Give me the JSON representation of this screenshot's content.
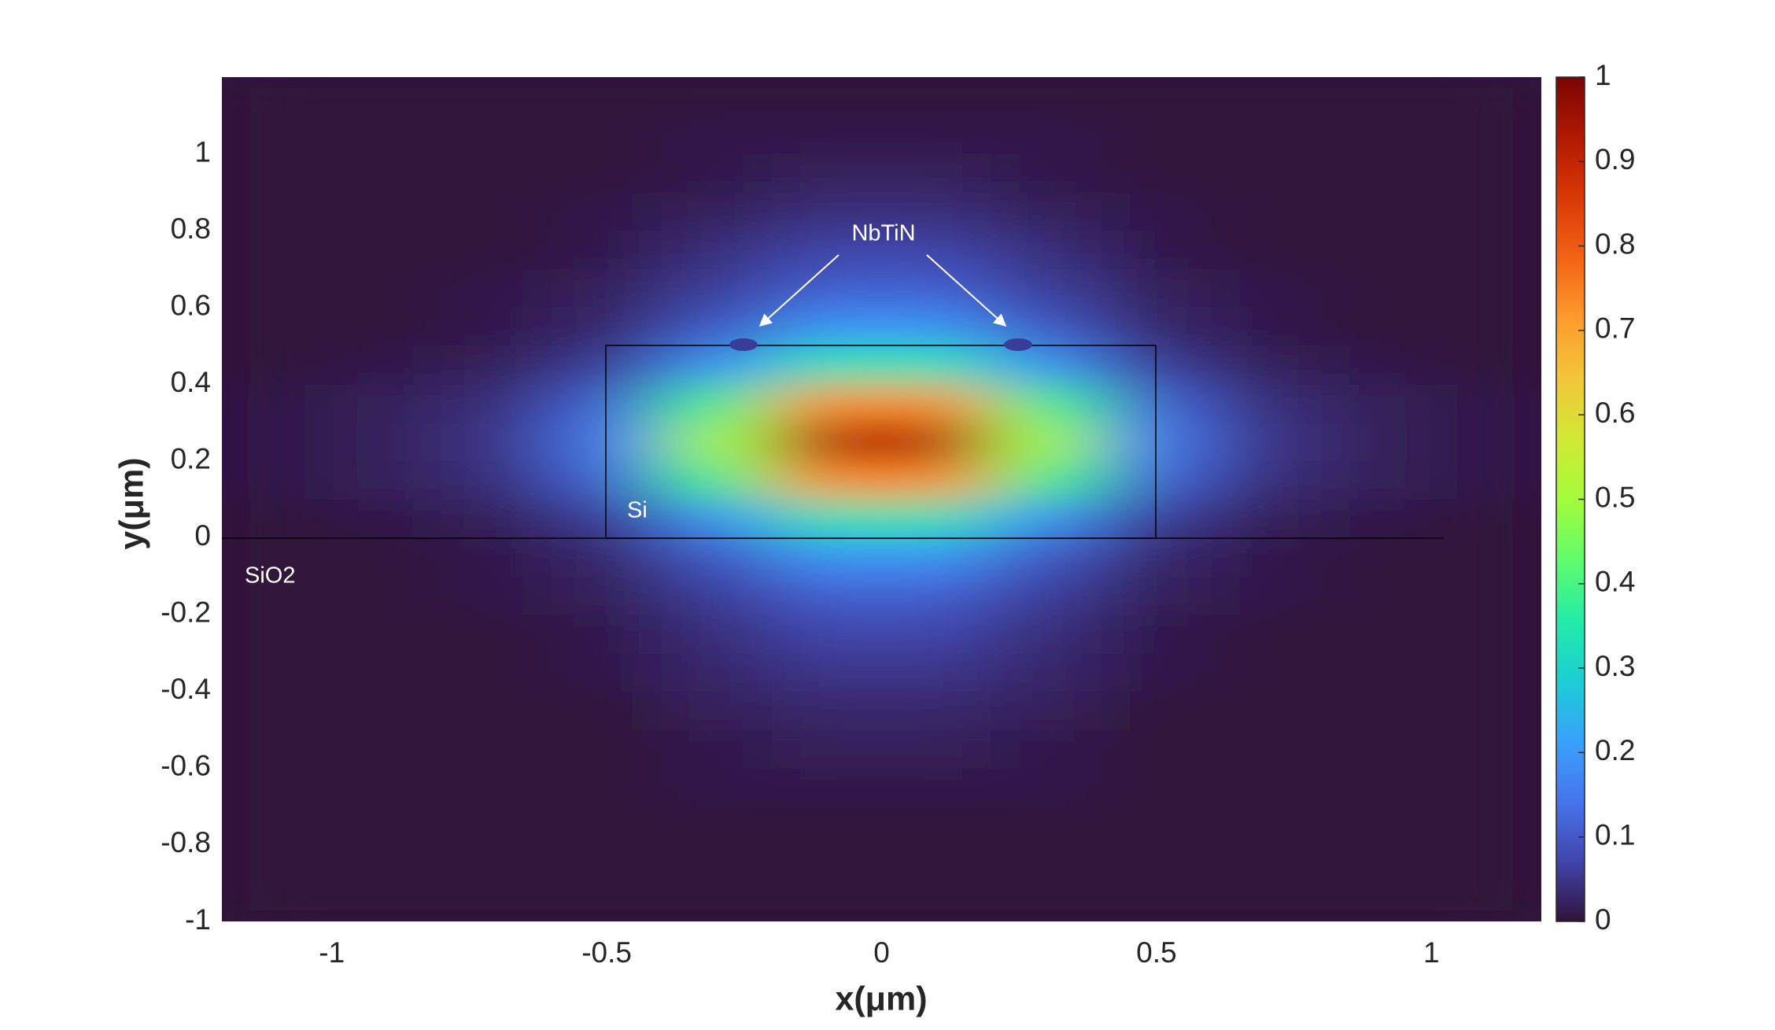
{
  "chart_data": {
    "type": "heatmap",
    "xlabel": "x(μm)",
    "ylabel": "y(μm)",
    "xlim": [
      -1.2,
      1.2
    ],
    "ylim": [
      -1,
      1.2
    ],
    "xticks": [
      -1,
      -0.5,
      0,
      0.5,
      1
    ],
    "yticks": [
      -1,
      -0.8,
      -0.6,
      -0.4,
      -0.2,
      0,
      0.2,
      0.4,
      0.6,
      0.8,
      1
    ],
    "x": [
      -1.1,
      -0.9,
      -0.7,
      -0.5,
      -0.3,
      -0.1,
      0.1,
      0.3,
      0.5,
      0.7,
      0.9,
      1.1
    ],
    "y": [
      -0.95,
      -0.85,
      -0.75,
      -0.65,
      -0.55,
      -0.45,
      -0.35,
      -0.25,
      -0.15,
      -0.05,
      0.05,
      0.15,
      0.25,
      0.35,
      0.45,
      0.55,
      0.65,
      0.75,
      0.85,
      0.95,
      1.05,
      1.15
    ],
    "values": [
      [
        0,
        0,
        0,
        0,
        0,
        0,
        0,
        0,
        0,
        0,
        0,
        0
      ],
      [
        0,
        0,
        0,
        0,
        0,
        0,
        0,
        0,
        0,
        0,
        0,
        0
      ],
      [
        0,
        0,
        0,
        0,
        0,
        0,
        0,
        0,
        0,
        0,
        0,
        0
      ],
      [
        0,
        0,
        0,
        0,
        0.01,
        0.01,
        0.01,
        0.01,
        0,
        0,
        0,
        0
      ],
      [
        0,
        0,
        0,
        0,
        0.01,
        0.02,
        0.02,
        0.01,
        0,
        0,
        0,
        0
      ],
      [
        0,
        0,
        0,
        0,
        0.02,
        0.03,
        0.03,
        0.02,
        0,
        0,
        0,
        0
      ],
      [
        0,
        0,
        0,
        0.01,
        0.03,
        0.05,
        0.05,
        0.03,
        0.01,
        0,
        0,
        0
      ],
      [
        0,
        0,
        0,
        0.01,
        0.04,
        0.07,
        0.07,
        0.04,
        0.01,
        0,
        0,
        0
      ],
      [
        0,
        0,
        0.01,
        0.02,
        0.06,
        0.11,
        0.11,
        0.06,
        0.02,
        0.01,
        0,
        0
      ],
      [
        0,
        0,
        0.01,
        0.03,
        0.1,
        0.19,
        0.19,
        0.1,
        0.03,
        0.01,
        0,
        0
      ],
      [
        0,
        0.01,
        0.02,
        0.06,
        0.19,
        0.34,
        0.34,
        0.19,
        0.06,
        0.02,
        0.01,
        0
      ],
      [
        0.01,
        0.02,
        0.04,
        0.12,
        0.39,
        0.73,
        0.73,
        0.39,
        0.12,
        0.04,
        0.02,
        0.01
      ],
      [
        0.01,
        0.02,
        0.05,
        0.15,
        0.5,
        0.93,
        0.93,
        0.5,
        0.15,
        0.05,
        0.02,
        0.01
      ],
      [
        0.01,
        0.02,
        0.04,
        0.12,
        0.39,
        0.73,
        0.73,
        0.39,
        0.12,
        0.04,
        0.02,
        0.01
      ],
      [
        0,
        0.01,
        0.02,
        0.06,
        0.19,
        0.34,
        0.34,
        0.19,
        0.06,
        0.02,
        0.01,
        0
      ],
      [
        0,
        0,
        0.01,
        0.03,
        0.1,
        0.19,
        0.19,
        0.1,
        0.03,
        0.01,
        0,
        0
      ],
      [
        0,
        0,
        0.01,
        0.02,
        0.06,
        0.11,
        0.11,
        0.06,
        0.02,
        0.01,
        0,
        0
      ],
      [
        0,
        0,
        0,
        0.01,
        0.04,
        0.07,
        0.07,
        0.04,
        0.01,
        0,
        0,
        0
      ],
      [
        0,
        0,
        0,
        0.01,
        0.02,
        0.04,
        0.04,
        0.02,
        0.01,
        0,
        0,
        0
      ],
      [
        0,
        0,
        0,
        0,
        0.01,
        0.02,
        0.02,
        0.01,
        0,
        0,
        0,
        0
      ],
      [
        0,
        0,
        0,
        0,
        0.01,
        0.01,
        0.01,
        0.01,
        0,
        0,
        0,
        0
      ],
      [
        0,
        0,
        0,
        0,
        0,
        0,
        0,
        0,
        0,
        0,
        0,
        0
      ]
    ],
    "colormap": [
      "#30123b",
      "#4145ab",
      "#4675ed",
      "#39a2fc",
      "#1bcfd4",
      "#24eca6",
      "#61fc6c",
      "#a4fc3b",
      "#d1e834",
      "#f3c63a",
      "#fe9b2d",
      "#f36315",
      "#d93806",
      "#b11901",
      "#7a0403"
    ],
    "colorbar": {
      "lim": [
        0,
        1
      ],
      "ticks": [
        0,
        0.1,
        0.2,
        0.3,
        0.4,
        0.5,
        0.6,
        0.7,
        0.8,
        0.9,
        1
      ]
    },
    "annotations": [
      "NbTiN",
      "Si",
      "SiO2"
    ]
  }
}
